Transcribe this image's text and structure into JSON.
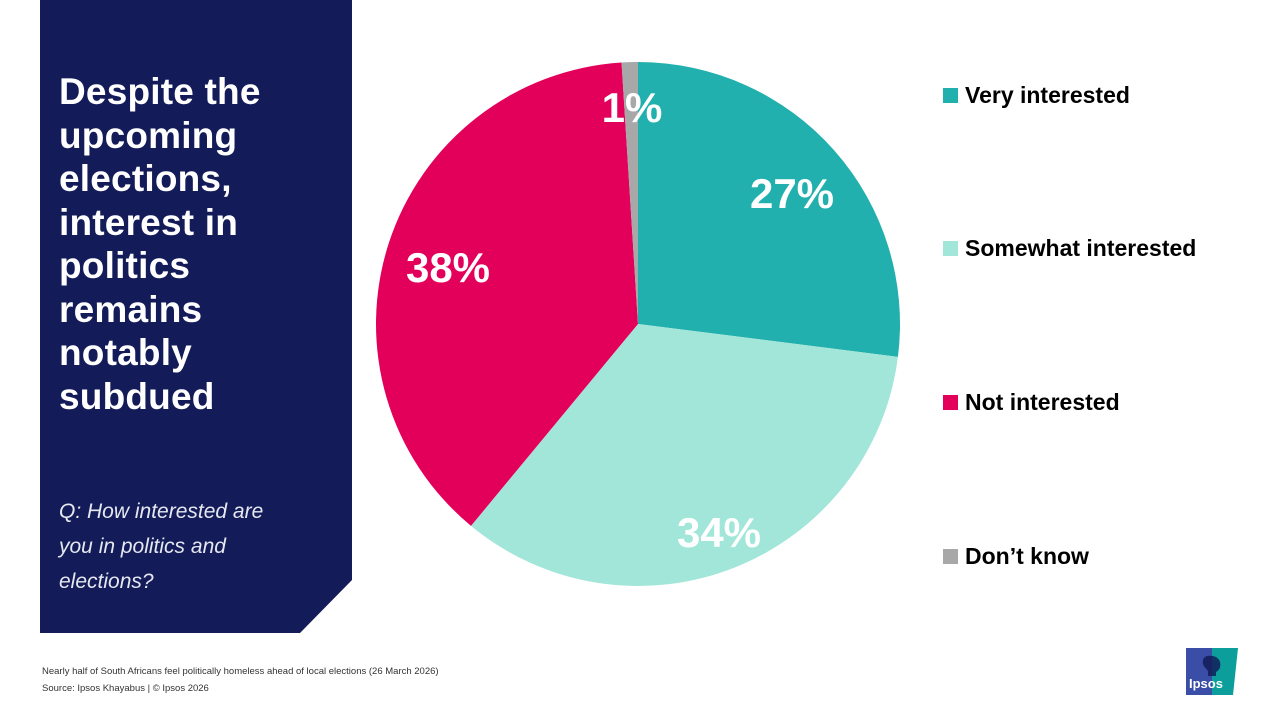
{
  "title": "Despite the upcoming elections, interest in politics remains notably subdued",
  "title_lines": [
    "Despite the",
    "upcoming",
    "elections,",
    "interest in",
    "politics",
    "remains",
    "notably",
    "subdued"
  ],
  "question_lines": [
    "Q: How interested are",
    "you in politics and",
    "elections?"
  ],
  "legend": [
    {
      "label": "Very interested",
      "color": "#21b0ad"
    },
    {
      "label": "Somewhat interested",
      "color": "#a2e6d9"
    },
    {
      "label": "Not interested",
      "color": "#e3005a"
    },
    {
      "label": "Don’t know",
      "color": "#a8a8a8"
    }
  ],
  "footer": {
    "line1": "Nearly half of South Africans feel politically homeless ahead of local elections  (26 March 2026)",
    "line2": "Source: Ipsos Khayabus  |  © Ipsos 2026"
  },
  "logo": {
    "text": "Ipsos",
    "color_left": "#3a4ea8",
    "color_right": "#0b9e9a"
  },
  "colors": {
    "panel": "#131c59"
  },
  "chart_data": {
    "type": "pie",
    "title": "How interested are you in politics and elections?",
    "categories": [
      "Very interested",
      "Somewhat interested",
      "Not interested",
      "Don’t know"
    ],
    "values": [
      27,
      34,
      38,
      1
    ],
    "value_labels": [
      "27%",
      "34%",
      "38%",
      "1%"
    ],
    "colors": [
      "#21b0ad",
      "#a2e6d9",
      "#e3005a",
      "#a8a8a8"
    ],
    "start_angle": "12 o'clock, clockwise",
    "legend_position": "right"
  }
}
